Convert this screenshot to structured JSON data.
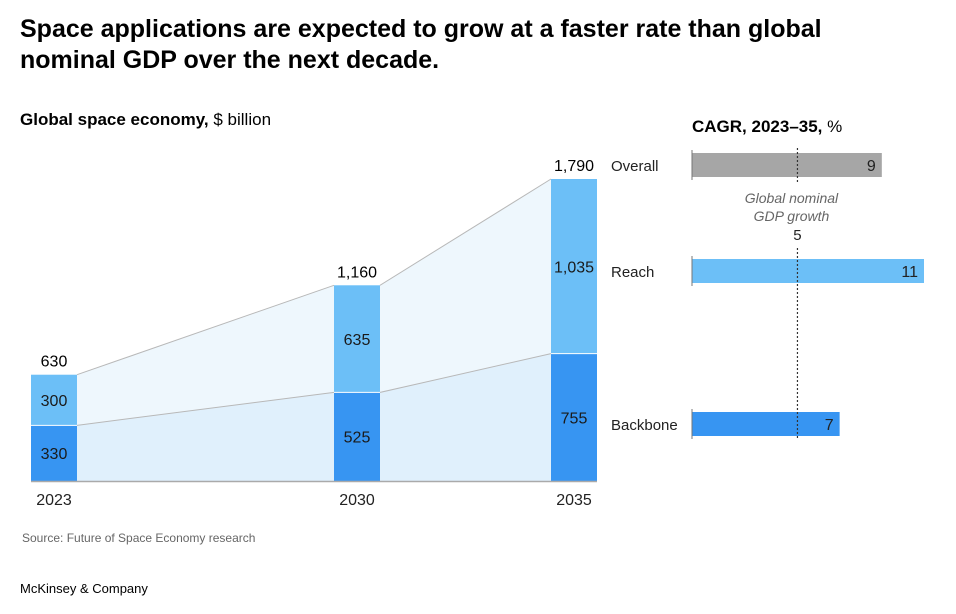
{
  "title": "Space applications are expected to grow at a faster rate than global nominal GDP over the next decade.",
  "source": "Source: Future of Space Economy research",
  "brand": "McKinsey & Company",
  "chart_data": [
    {
      "type": "bar",
      "stacked": true,
      "title_bold": "Global space economy,",
      "title_unit": "$ billion",
      "categories": [
        "2023",
        "2030",
        "2035"
      ],
      "series": [
        {
          "name": "Backbone",
          "values": [
            330,
            525,
            755
          ],
          "color": "#3795f2"
        },
        {
          "name": "Reach",
          "values": [
            300,
            635,
            1035
          ],
          "color": "#6cbff7"
        }
      ],
      "totals": [
        "630",
        "1,160",
        "1,790"
      ],
      "value_labels": {
        "Backbone": [
          "330",
          "525",
          "755"
        ],
        "Reach": [
          "300",
          "635",
          "1,035"
        ]
      },
      "ylim": [
        0,
        1790
      ],
      "grid": false,
      "area_colors": {
        "Reach": "#eef7fd",
        "Backbone": "#e0f0fc"
      }
    },
    {
      "type": "bar",
      "orientation": "horizontal",
      "title_bold": "CAGR, 2023–35,",
      "title_unit": "%",
      "categories": [
        "Overall",
        "Reach",
        "Backbone"
      ],
      "values": [
        9,
        11,
        7
      ],
      "colors": [
        "#a6a6a6",
        "#6cbff7",
        "#3795f2"
      ],
      "xlim": [
        0,
        11
      ],
      "reference_line": {
        "value": 5,
        "label_line1": "Global nominal",
        "label_line2": "GDP growth",
        "value_label": "5"
      }
    }
  ]
}
